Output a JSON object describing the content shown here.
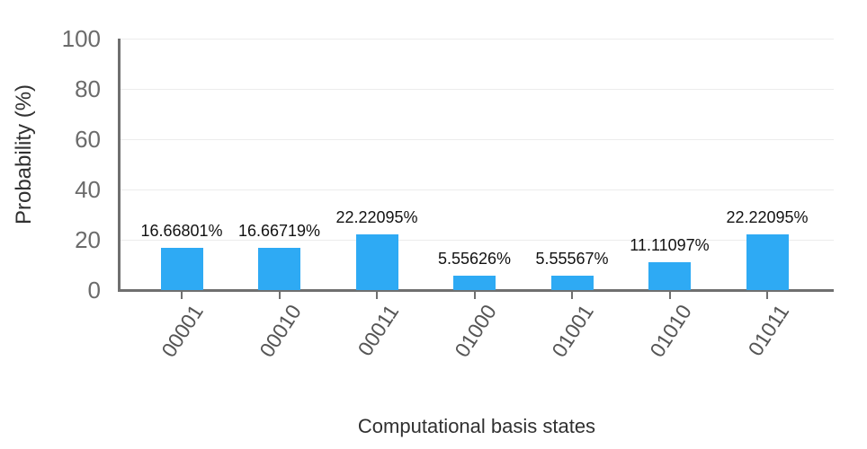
{
  "chart_data": {
    "type": "bar",
    "title": "",
    "xlabel": "Computational basis states",
    "ylabel": "Probability (%)",
    "categories": [
      "00001",
      "00010",
      "00011",
      "01000",
      "01001",
      "01010",
      "01011"
    ],
    "values": [
      16.66801,
      16.66719,
      22.22095,
      5.55626,
      5.55567,
      11.11097,
      22.22095
    ],
    "bar_labels": [
      "16.66801%",
      "16.66719%",
      "22.22095%",
      "5.55626%",
      "5.55567%",
      "11.11097%",
      "22.22095%"
    ],
    "y_ticks": [
      0,
      20,
      40,
      60,
      80,
      100
    ],
    "ylim": [
      0,
      100
    ],
    "grid": "horizontal",
    "legend": "none",
    "x_tick_label_rotation_deg": 57,
    "colors": {
      "bar": "#2EAAF4",
      "axis": "#6f6f6f",
      "gridline": "#ececec",
      "y_tick_text": "#6b6b6b",
      "x_tick_text": "#555555",
      "axis_title_text": "#303030",
      "bar_label_text": "#121212",
      "background": "#ffffff"
    }
  }
}
